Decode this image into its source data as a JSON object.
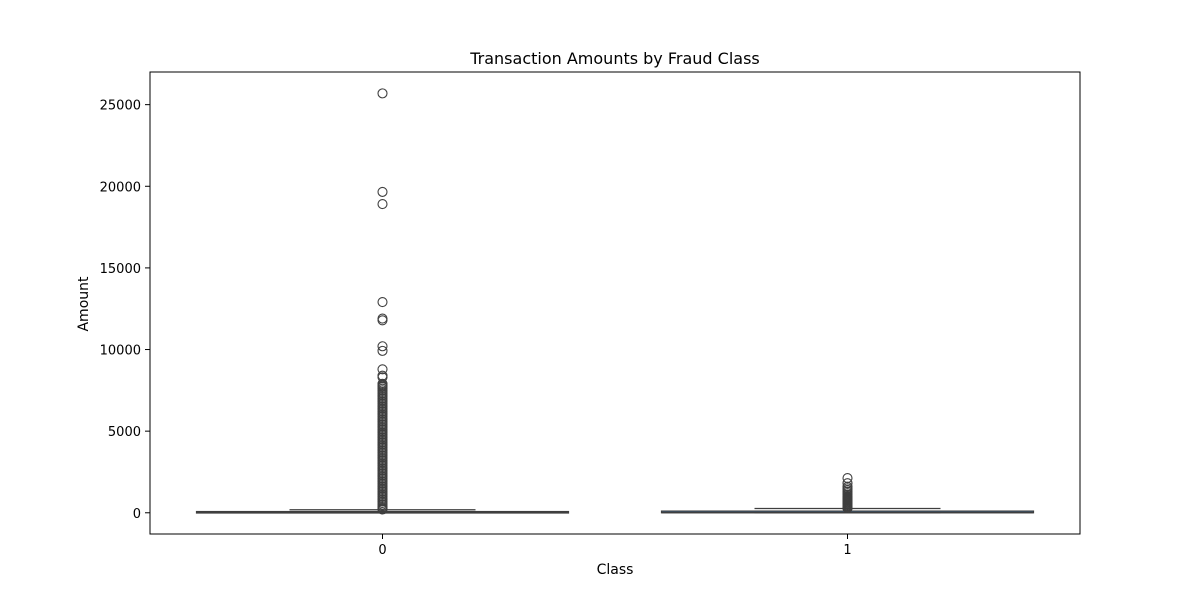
{
  "chart_data": {
    "type": "box",
    "title": "Transaction Amounts by Fraud Class",
    "xlabel": "Class",
    "ylabel": "Amount",
    "ylim": [
      -1300,
      27000
    ],
    "yticks": [
      0,
      5000,
      10000,
      15000,
      20000,
      25000
    ],
    "categories": [
      "0",
      "1"
    ],
    "box_fill": "#3b75af",
    "line_color": "#3f3f3f",
    "series": [
      {
        "category": "0",
        "whisker_low": 0,
        "q1": 5.6,
        "median": 22,
        "q3": 77,
        "whisker_high": 185,
        "outliers": [
          25691,
          19656,
          18910,
          12910,
          11898,
          11790,
          10200,
          9917,
          8790,
          8400,
          8300,
          7900,
          7820,
          7750,
          7700,
          7600,
          7500,
          7400,
          7300,
          7200,
          7100,
          7000,
          6900,
          6800,
          6700,
          6600,
          6500,
          6400,
          6300,
          6200,
          6100,
          6000,
          5900,
          5800,
          5700,
          5600,
          5500,
          5400,
          5300,
          5200,
          5100,
          5000,
          4900,
          4800,
          4700,
          4600,
          4500,
          4400,
          4300,
          4200,
          4100,
          4000,
          3900,
          3800,
          3700,
          3600,
          3500,
          3400,
          3300,
          3200,
          3100,
          3000,
          2900,
          2800,
          2700,
          2600,
          2500,
          2400,
          2300,
          2200,
          2100,
          2000,
          1900,
          1800,
          1700,
          1600,
          1500,
          1400,
          1300,
          1200,
          1100,
          1000,
          900,
          800,
          700,
          600,
          500,
          400,
          300,
          250,
          200
        ]
      },
      {
        "category": "1",
        "whisker_low": 0,
        "q1": 1,
        "median": 9.25,
        "q3": 105,
        "whisker_high": 260,
        "outliers": [
          2125,
          1810,
          1600,
          1500,
          1400,
          1300,
          1200,
          1100,
          1000,
          950,
          900,
          850,
          800,
          750,
          700,
          650,
          600,
          550,
          500,
          450,
          400,
          350,
          300,
          280
        ]
      }
    ]
  }
}
